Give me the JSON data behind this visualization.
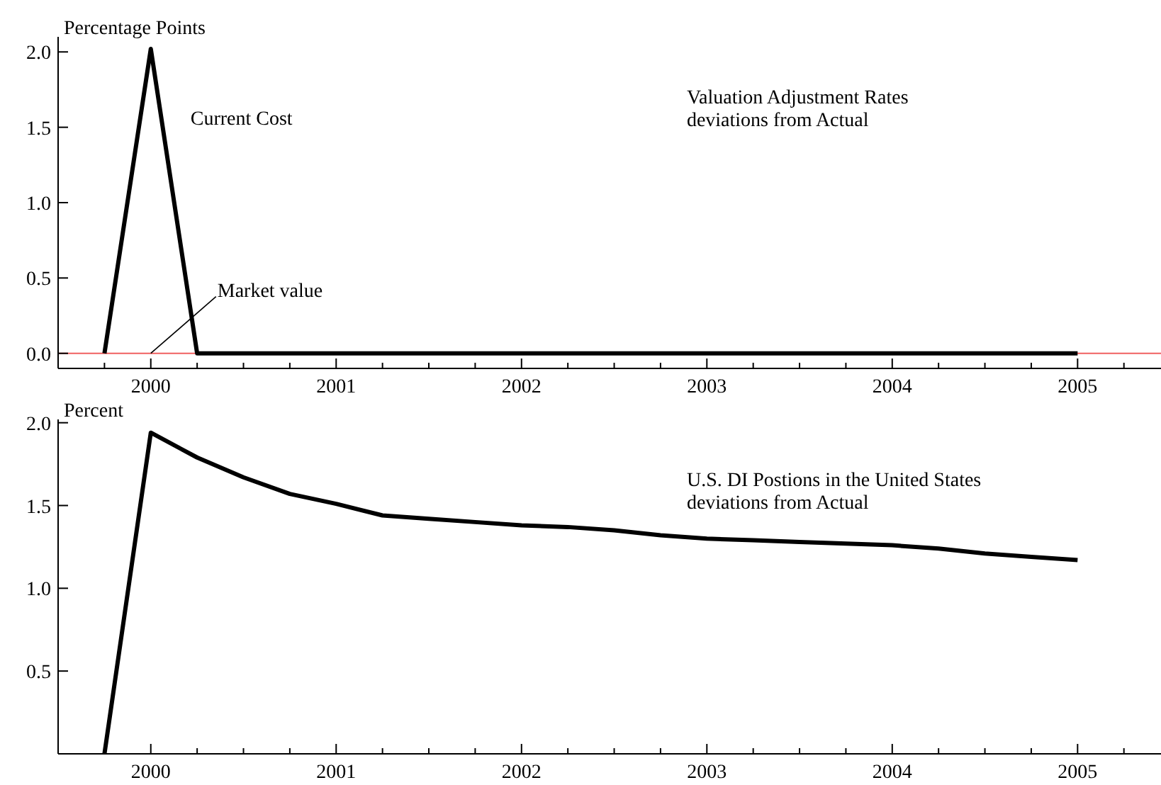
{
  "chart_data": [
    {
      "type": "line",
      "title": "Valuation Adjustment Rates\ndeviations from Actual",
      "ylabel": "Percentage Points",
      "series": [
        {
          "name": "Current Cost",
          "color": "#000000",
          "x": [
            1999.75,
            2000,
            2000.25,
            2000.5,
            2000.75,
            2001,
            2001.25,
            2001.5,
            2001.75,
            2002,
            2002.25,
            2002.5,
            2002.75,
            2003,
            2003.25,
            2003.5,
            2003.75,
            2004,
            2004.25,
            2004.5,
            2004.75,
            2005
          ],
          "values": [
            0,
            2.02,
            0,
            0,
            0,
            0,
            0,
            0,
            0,
            0,
            0,
            0,
            0,
            0,
            0,
            0,
            0,
            0,
            0,
            0,
            0,
            0
          ]
        }
      ],
      "annotations": [
        {
          "text": "Market value",
          "x": 2000,
          "y": 0
        }
      ],
      "ref_lines": [
        {
          "axis": "y",
          "value": 0,
          "color": "#f06060"
        }
      ],
      "xlim": [
        1999.5,
        2005.45
      ],
      "ylim": [
        -0.1,
        2.1
      ],
      "xticks": [
        {
          "value": 1999.75,
          "label": null
        },
        2000,
        {
          "value": 2000.25,
          "label": null
        },
        {
          "value": 2000.5,
          "label": null
        },
        {
          "value": 2000.75,
          "label": null
        },
        2001,
        {
          "value": 2001.25,
          "label": null
        },
        {
          "value": 2001.5,
          "label": null
        },
        {
          "value": 2001.75,
          "label": null
        },
        2002,
        {
          "value": 2002.25,
          "label": null
        },
        {
          "value": 2002.5,
          "label": null
        },
        {
          "value": 2002.75,
          "label": null
        },
        2003,
        {
          "value": 2003.25,
          "label": null
        },
        {
          "value": 2003.5,
          "label": null
        },
        {
          "value": 2003.75,
          "label": null
        },
        2004,
        {
          "value": 2004.25,
          "label": null
        },
        {
          "value": 2004.5,
          "label": null
        },
        {
          "value": 2004.75,
          "label": null
        },
        2005,
        {
          "value": 2005.25,
          "label": null
        }
      ],
      "yticks": [
        {
          "value": 0,
          "label": "0.0"
        },
        {
          "value": 0.5,
          "label": "0.5"
        },
        {
          "value": 1,
          "label": "1.0"
        },
        {
          "value": 1.5,
          "label": "1.5"
        },
        {
          "value": 2,
          "label": "2.0"
        }
      ],
      "grid": false
    },
    {
      "type": "line",
      "title": "U.S. DI Postions in the United States\ndeviations from Actual",
      "ylabel": "Percent",
      "series": [
        {
          "color": "#000000",
          "x": [
            1999.75,
            2000,
            2000.25,
            2000.5,
            2000.75,
            2001,
            2001.25,
            2001.5,
            2001.75,
            2002,
            2002.25,
            2002.5,
            2002.75,
            2003,
            2003.25,
            2003.5,
            2003.75,
            2004,
            2004.25,
            2004.5,
            2004.75,
            2005
          ],
          "values": [
            0,
            1.94,
            1.79,
            1.67,
            1.57,
            1.51,
            1.44,
            1.42,
            1.4,
            1.38,
            1.37,
            1.35,
            1.32,
            1.3,
            1.29,
            1.28,
            1.27,
            1.26,
            1.24,
            1.21,
            1.19,
            1.17
          ]
        }
      ],
      "xlim": [
        1999.5,
        2005.45
      ],
      "ylim": [
        0,
        2.02
      ],
      "xticks": [
        {
          "value": 1999.75,
          "label": null
        },
        2000,
        {
          "value": 2000.25,
          "label": null
        },
        {
          "value": 2000.5,
          "label": null
        },
        {
          "value": 2000.75,
          "label": null
        },
        2001,
        {
          "value": 2001.25,
          "label": null
        },
        {
          "value": 2001.5,
          "label": null
        },
        {
          "value": 2001.75,
          "label": null
        },
        2002,
        {
          "value": 2002.25,
          "label": null
        },
        {
          "value": 2002.5,
          "label": null
        },
        {
          "value": 2002.75,
          "label": null
        },
        2003,
        {
          "value": 2003.25,
          "label": null
        },
        {
          "value": 2003.5,
          "label": null
        },
        {
          "value": 2003.75,
          "label": null
        },
        2004,
        {
          "value": 2004.25,
          "label": null
        },
        {
          "value": 2004.5,
          "label": null
        },
        {
          "value": 2004.75,
          "label": null
        },
        2005,
        {
          "value": 2005.25,
          "label": null
        }
      ],
      "yticks": [
        {
          "value": 0.5,
          "label": "0.5"
        },
        {
          "value": 1,
          "label": "1.0"
        },
        {
          "value": 1.5,
          "label": "1.5"
        },
        {
          "value": 2,
          "label": "2.0"
        }
      ],
      "grid": false
    }
  ]
}
